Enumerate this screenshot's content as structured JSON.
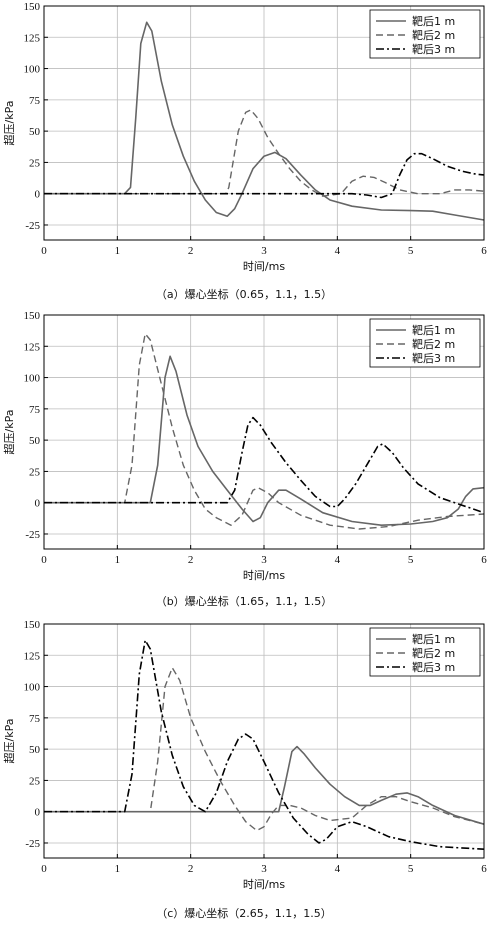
{
  "chart_data": [
    {
      "type": "line",
      "xlabel": "时间/ms",
      "ylabel": "超压/kPa",
      "xlim": [
        0,
        6
      ],
      "ylim": [
        -37,
        150
      ],
      "xticks": [
        0,
        1,
        2,
        3,
        4,
        5,
        6
      ],
      "yticks": [
        -25,
        0,
        25,
        50,
        75,
        100,
        125,
        150
      ],
      "grid": true,
      "legend_position": "top-right",
      "caption": "（a）爆心坐标（0.65，1.1，1.5）",
      "series": [
        {
          "name": "靶后1 m",
          "style": "solid",
          "color": "#666666",
          "points": [
            [
              0,
              0
            ],
            [
              1.1,
              0
            ],
            [
              1.18,
              5
            ],
            [
              1.25,
              60
            ],
            [
              1.32,
              120
            ],
            [
              1.4,
              137
            ],
            [
              1.47,
              130
            ],
            [
              1.6,
              90
            ],
            [
              1.75,
              55
            ],
            [
              1.9,
              30
            ],
            [
              2.05,
              10
            ],
            [
              2.2,
              -5
            ],
            [
              2.35,
              -15
            ],
            [
              2.5,
              -18
            ],
            [
              2.6,
              -12
            ],
            [
              2.7,
              0
            ],
            [
              2.85,
              20
            ],
            [
              3.0,
              30
            ],
            [
              3.15,
              33
            ],
            [
              3.3,
              28
            ],
            [
              3.5,
              15
            ],
            [
              3.7,
              3
            ],
            [
              3.9,
              -5
            ],
            [
              4.2,
              -10
            ],
            [
              4.6,
              -13
            ],
            [
              5.0,
              -13.5
            ],
            [
              5.3,
              -14
            ],
            [
              5.6,
              -17
            ],
            [
              6.0,
              -21
            ]
          ]
        },
        {
          "name": "靶后2 m",
          "style": "dashed",
          "color": "#666666",
          "points": [
            [
              0,
              0
            ],
            [
              2.48,
              0
            ],
            [
              2.52,
              5
            ],
            [
              2.65,
              50
            ],
            [
              2.75,
              65
            ],
            [
              2.82,
              67
            ],
            [
              2.92,
              60
            ],
            [
              3.05,
              45
            ],
            [
              3.2,
              32
            ],
            [
              3.35,
              20
            ],
            [
              3.5,
              10
            ],
            [
              3.65,
              3
            ],
            [
              3.8,
              -2
            ],
            [
              4.05,
              0
            ],
            [
              4.2,
              10
            ],
            [
              4.35,
              14
            ],
            [
              4.5,
              13
            ],
            [
              4.65,
              9
            ],
            [
              4.85,
              3
            ],
            [
              5.1,
              0
            ],
            [
              5.4,
              0
            ],
            [
              5.6,
              3
            ],
            [
              5.8,
              3
            ],
            [
              6.0,
              2
            ]
          ]
        },
        {
          "name": "靶后3 m",
          "style": "dashdot",
          "color": "#000000",
          "points": [
            [
              0,
              0
            ],
            [
              4.2,
              0
            ],
            [
              4.4,
              -1
            ],
            [
              4.6,
              -3
            ],
            [
              4.75,
              0
            ],
            [
              4.85,
              15
            ],
            [
              4.95,
              27
            ],
            [
              5.05,
              32
            ],
            [
              5.15,
              32
            ],
            [
              5.3,
              28
            ],
            [
              5.5,
              22
            ],
            [
              5.7,
              18
            ],
            [
              5.9,
              15.5
            ],
            [
              6.0,
              15
            ]
          ]
        }
      ]
    },
    {
      "type": "line",
      "xlabel": "时间/ms",
      "ylabel": "超压/kPa",
      "xlim": [
        0,
        6
      ],
      "ylim": [
        -37,
        150
      ],
      "xticks": [
        0,
        1,
        2,
        3,
        4,
        5,
        6
      ],
      "yticks": [
        -25,
        0,
        25,
        50,
        75,
        100,
        125,
        150
      ],
      "grid": true,
      "legend_position": "top-right",
      "caption": "（b）爆心坐标（1.65，1.1，1.5）",
      "series": [
        {
          "name": "靶后1 m",
          "style": "solid",
          "color": "#666666",
          "points": [
            [
              0,
              0
            ],
            [
              1.45,
              0
            ],
            [
              1.55,
              30
            ],
            [
              1.65,
              100
            ],
            [
              1.72,
              117
            ],
            [
              1.8,
              105
            ],
            [
              1.95,
              70
            ],
            [
              2.1,
              45
            ],
            [
              2.3,
              25
            ],
            [
              2.5,
              10
            ],
            [
              2.7,
              -5
            ],
            [
              2.85,
              -15
            ],
            [
              2.95,
              -12
            ],
            [
              3.05,
              0
            ],
            [
              3.2,
              10
            ],
            [
              3.3,
              10
            ],
            [
              3.5,
              3
            ],
            [
              3.8,
              -8
            ],
            [
              4.2,
              -15
            ],
            [
              4.6,
              -18
            ],
            [
              5.0,
              -17
            ],
            [
              5.3,
              -15
            ],
            [
              5.5,
              -12
            ],
            [
              5.65,
              -5
            ],
            [
              5.75,
              5
            ],
            [
              5.85,
              11
            ],
            [
              6.0,
              12
            ]
          ]
        },
        {
          "name": "靶后2 m",
          "style": "dashed",
          "color": "#666666",
          "points": [
            [
              0,
              0
            ],
            [
              1.1,
              0
            ],
            [
              1.2,
              30
            ],
            [
              1.3,
              110
            ],
            [
              1.38,
              135
            ],
            [
              1.45,
              130
            ],
            [
              1.6,
              95
            ],
            [
              1.75,
              60
            ],
            [
              1.9,
              30
            ],
            [
              2.05,
              10
            ],
            [
              2.2,
              -5
            ],
            [
              2.35,
              -12
            ],
            [
              2.55,
              -18
            ],
            [
              2.7,
              -10
            ],
            [
              2.85,
              10
            ],
            [
              2.92,
              12
            ],
            [
              3.05,
              8
            ],
            [
              3.2,
              0
            ],
            [
              3.5,
              -10
            ],
            [
              3.9,
              -18
            ],
            [
              4.3,
              -21
            ],
            [
              4.7,
              -19
            ],
            [
              5.1,
              -14
            ],
            [
              5.5,
              -11
            ],
            [
              6.0,
              -9
            ]
          ]
        },
        {
          "name": "靶后3 m",
          "style": "dashdot",
          "color": "#000000",
          "points": [
            [
              0,
              0
            ],
            [
              2.5,
              0
            ],
            [
              2.6,
              10
            ],
            [
              2.7,
              40
            ],
            [
              2.78,
              62
            ],
            [
              2.85,
              68
            ],
            [
              2.95,
              62
            ],
            [
              3.1,
              48
            ],
            [
              3.3,
              32
            ],
            [
              3.5,
              18
            ],
            [
              3.7,
              5
            ],
            [
              3.9,
              -3
            ],
            [
              4.0,
              -3
            ],
            [
              4.1,
              3
            ],
            [
              4.25,
              15
            ],
            [
              4.4,
              30
            ],
            [
              4.55,
              45
            ],
            [
              4.62,
              47
            ],
            [
              4.75,
              40
            ],
            [
              4.9,
              28
            ],
            [
              5.1,
              15
            ],
            [
              5.4,
              4
            ],
            [
              5.7,
              -2
            ],
            [
              6.0,
              -8
            ]
          ]
        }
      ]
    },
    {
      "type": "line",
      "xlabel": "时间/ms",
      "ylabel": "超压/kPa",
      "xlim": [
        0,
        6
      ],
      "ylim": [
        -37,
        150
      ],
      "xticks": [
        0,
        1,
        2,
        3,
        4,
        5,
        6
      ],
      "yticks": [
        -25,
        0,
        25,
        50,
        75,
        100,
        125,
        150
      ],
      "grid": true,
      "legend_position": "top-right",
      "caption": "（c）爆心坐标（2.65，1.1，1.5）",
      "series": [
        {
          "name": "靶后1 m",
          "style": "solid",
          "color": "#666666",
          "points": [
            [
              0,
              0
            ],
            [
              3.2,
              0
            ],
            [
              3.28,
              20
            ],
            [
              3.38,
              48
            ],
            [
              3.45,
              52
            ],
            [
              3.55,
              46
            ],
            [
              3.7,
              35
            ],
            [
              3.9,
              22
            ],
            [
              4.1,
              12
            ],
            [
              4.3,
              5
            ],
            [
              4.45,
              5
            ],
            [
              4.6,
              9
            ],
            [
              4.8,
              14
            ],
            [
              4.95,
              15
            ],
            [
              5.1,
              12
            ],
            [
              5.3,
              5
            ],
            [
              5.6,
              -3
            ],
            [
              6.0,
              -10
            ]
          ]
        },
        {
          "name": "靶后2 m",
          "style": "dashed",
          "color": "#666666",
          "points": [
            [
              0,
              0
            ],
            [
              1.45,
              0
            ],
            [
              1.55,
              40
            ],
            [
              1.65,
              100
            ],
            [
              1.75,
              115
            ],
            [
              1.85,
              105
            ],
            [
              2.0,
              75
            ],
            [
              2.2,
              48
            ],
            [
              2.4,
              25
            ],
            [
              2.6,
              5
            ],
            [
              2.75,
              -8
            ],
            [
              2.9,
              -15
            ],
            [
              3.0,
              -12
            ],
            [
              3.1,
              -2
            ],
            [
              3.2,
              5
            ],
            [
              3.35,
              5
            ],
            [
              3.5,
              3
            ],
            [
              3.7,
              -3
            ],
            [
              3.9,
              -7
            ],
            [
              4.2,
              -5
            ],
            [
              4.4,
              5
            ],
            [
              4.6,
              12
            ],
            [
              4.8,
              12
            ],
            [
              5.0,
              8
            ],
            [
              5.3,
              3
            ],
            [
              5.6,
              -4
            ],
            [
              6.0,
              -10
            ]
          ]
        },
        {
          "name": "靶后3 m",
          "style": "dashdot",
          "color": "#000000",
          "points": [
            [
              0,
              0
            ],
            [
              1.1,
              0
            ],
            [
              1.2,
              30
            ],
            [
              1.3,
              110
            ],
            [
              1.38,
              137
            ],
            [
              1.45,
              130
            ],
            [
              1.6,
              80
            ],
            [
              1.75,
              45
            ],
            [
              1.9,
              20
            ],
            [
              2.05,
              5
            ],
            [
              2.2,
              0
            ],
            [
              2.35,
              15
            ],
            [
              2.5,
              40
            ],
            [
              2.65,
              58
            ],
            [
              2.75,
              62
            ],
            [
              2.85,
              58
            ],
            [
              3.0,
              40
            ],
            [
              3.2,
              15
            ],
            [
              3.4,
              -5
            ],
            [
              3.6,
              -18
            ],
            [
              3.75,
              -25
            ],
            [
              3.85,
              -22
            ],
            [
              4.0,
              -12
            ],
            [
              4.2,
              -8
            ],
            [
              4.4,
              -12
            ],
            [
              4.7,
              -20
            ],
            [
              5.0,
              -24
            ],
            [
              5.4,
              -28
            ],
            [
              6.0,
              -30
            ]
          ]
        }
      ]
    }
  ]
}
